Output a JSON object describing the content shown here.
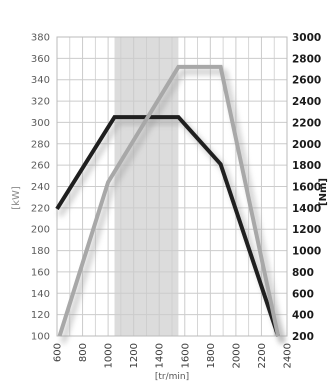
{
  "chart_data": {
    "type": "line",
    "x_ticks": [
      "600",
      "800",
      "1000",
      "1200",
      "1400",
      "1600",
      "1800",
      "2000",
      "2200",
      "2400"
    ],
    "x_range": [
      600,
      2400
    ],
    "xlabel": "[tr/min]",
    "y_left_ticks": [
      "380",
      "360",
      "340",
      "320",
      "300",
      "280",
      "260",
      "240",
      "220",
      "200",
      "180",
      "160",
      "140",
      "120",
      "100"
    ],
    "y_left_range": [
      100,
      380
    ],
    "ylabel_left": "[kW]",
    "y_right_ticks": [
      "3000",
      "2800",
      "2600",
      "2400",
      "2200",
      "2000",
      "1800",
      "1600",
      "1400",
      "1200",
      "1000",
      "800",
      "600",
      "400",
      "200"
    ],
    "y_right_range": [
      200,
      3000
    ],
    "ylabel_right": "[Nm]",
    "highlight_band": {
      "x": [
        1050,
        1550
      ],
      "color": "#dcdcdc"
    },
    "grid": true,
    "series": [
      {
        "axis": "left",
        "color": "#1f1f1f",
        "x": [
          600,
          1050,
          1550,
          1880,
          2330
        ],
        "y": [
          219,
          305,
          305,
          261,
          100
        ]
      },
      {
        "axis": "right",
        "color": "#a8a8a8",
        "x": [
          620,
          1000,
          1550,
          1880,
          2330
        ],
        "y": [
          200,
          1640,
          2720,
          2720,
          200
        ]
      }
    ],
    "colors": {
      "grid": "#cccccc",
      "frame": "#bbbbbb",
      "background": "#ffffff"
    }
  }
}
